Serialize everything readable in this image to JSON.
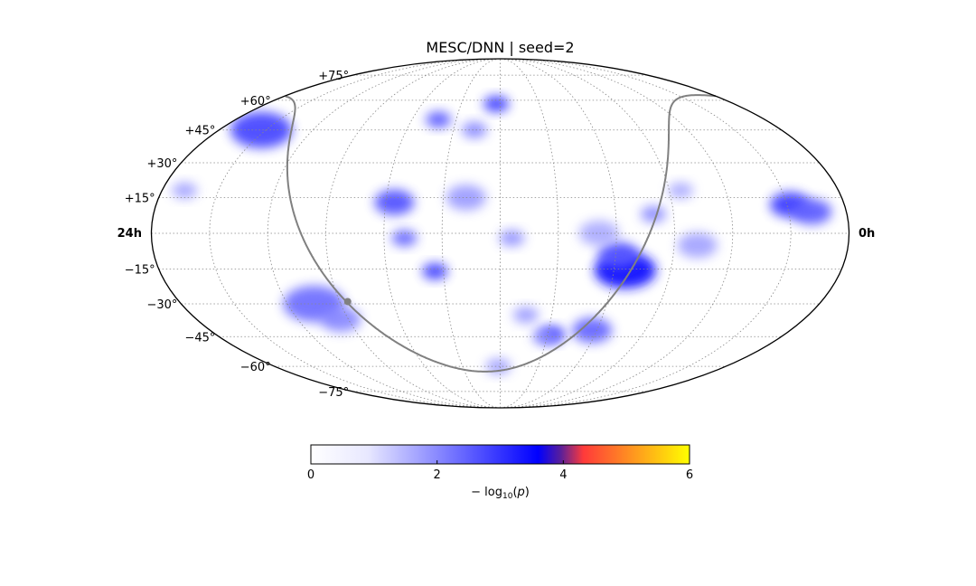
{
  "chart_data": {
    "type": "heatmap",
    "projection": "mollweide",
    "title": "MESC/DNN | seed=2",
    "lat_ticks": [
      {
        "value": 75,
        "label": "+75°"
      },
      {
        "value": 60,
        "label": "+60°"
      },
      {
        "value": 45,
        "label": "+45°"
      },
      {
        "value": 30,
        "label": "+30°"
      },
      {
        "value": 15,
        "label": "+15°"
      },
      {
        "value": -15,
        "label": "−15°"
      },
      {
        "value": -30,
        "label": "−30°"
      },
      {
        "value": -45,
        "label": "−45°"
      },
      {
        "value": -60,
        "label": "−60°"
      },
      {
        "value": -75,
        "label": "−75°"
      }
    ],
    "ra_labels": {
      "left": "24h",
      "right": "0h"
    },
    "grid": true,
    "grid_lon_step_deg": 30,
    "grid_lat_step_deg": 15,
    "colorbar": {
      "label": "− log10(p)",
      "ticks": [
        0,
        2,
        4,
        6
      ],
      "range": [
        0,
        6
      ],
      "colors": [
        "#ffffff",
        "#0000ff",
        "#ff3333",
        "#ffff00"
      ],
      "stops": [
        0,
        0.6,
        0.72,
        1.0
      ]
    },
    "hotspots": [
      {
        "ra_h": 7.6,
        "dec": -15.5,
        "value": 3.2,
        "size": "large"
      },
      {
        "ra_h": 7.9,
        "dec": -9,
        "value": 2.4,
        "size": "medium"
      },
      {
        "ra_h": 1.9,
        "dec": 12,
        "value": 2.6,
        "size": "medium"
      },
      {
        "ra_h": 1.2,
        "dec": 9,
        "value": 2.3,
        "size": "medium"
      },
      {
        "ra_h": 22.2,
        "dec": 45,
        "value": 2.5,
        "size": "large"
      },
      {
        "ra_h": 15.7,
        "dec": 13,
        "value": 2.4,
        "size": "medium"
      },
      {
        "ra_h": 14.3,
        "dec": -16,
        "value": 2.6,
        "size": "small"
      },
      {
        "ra_h": 15.3,
        "dec": -2,
        "value": 2.2,
        "size": "small"
      },
      {
        "ra_h": 12.2,
        "dec": 58,
        "value": 2.6,
        "size": "small"
      },
      {
        "ra_h": 9.8,
        "dec": -44,
        "value": 2.6,
        "size": "small"
      },
      {
        "ra_h": 8.2,
        "dec": -42,
        "value": 2.2,
        "size": "medium"
      },
      {
        "ra_h": 14.8,
        "dec": 50,
        "value": 2.3,
        "size": "small"
      },
      {
        "ra_h": 19.0,
        "dec": -30,
        "value": 2.1,
        "size": "large"
      },
      {
        "ra_h": 18.3,
        "dec": -37,
        "value": 1.8,
        "size": "medium"
      },
      {
        "ra_h": 13.2,
        "dec": 15,
        "value": 1.6,
        "size": "medium"
      },
      {
        "ra_h": 6.7,
        "dec": 8,
        "value": 1.8,
        "size": "small"
      },
      {
        "ra_h": 5.6,
        "dec": 18,
        "value": 1.4,
        "size": "small"
      },
      {
        "ra_h": 5.2,
        "dec": -5,
        "value": 1.5,
        "size": "medium"
      },
      {
        "ra_h": 13.1,
        "dec": 45,
        "value": 1.8,
        "size": "small"
      },
      {
        "ra_h": 8.6,
        "dec": 0,
        "value": 1.4,
        "size": "medium"
      },
      {
        "ra_h": 10.1,
        "dec": -45,
        "value": 1.7,
        "size": "small"
      },
      {
        "ra_h": 11.6,
        "dec": -2,
        "value": 1.7,
        "size": "small"
      },
      {
        "ra_h": 23.2,
        "dec": 18,
        "value": 1.5,
        "size": "small"
      },
      {
        "ra_h": 11.0,
        "dec": -35,
        "value": 1.6,
        "size": "small"
      },
      {
        "ra_h": 12.1,
        "dec": -60,
        "value": 1.5,
        "size": "small"
      }
    ],
    "curve": {
      "description": "galactic plane",
      "color": "#808080",
      "marker": {
        "ra_h": 17.7,
        "dec": -29
      }
    }
  }
}
